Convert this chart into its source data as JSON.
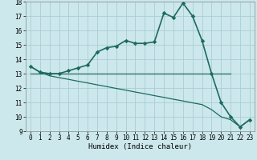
{
  "xlabel": "Humidex (Indice chaleur)",
  "x": [
    0,
    1,
    2,
    3,
    4,
    5,
    6,
    7,
    8,
    9,
    10,
    11,
    12,
    13,
    14,
    15,
    16,
    17,
    18,
    19,
    20,
    21,
    22,
    23
  ],
  "line1": [
    13.5,
    13.1,
    13.0,
    13.0,
    13.2,
    13.4,
    13.6,
    14.5,
    14.8,
    14.9,
    15.3,
    15.1,
    15.1,
    15.2,
    17.2,
    16.9,
    17.9,
    17.0,
    15.3,
    13.0,
    11.0,
    10.0,
    9.3,
    9.8
  ],
  "line2_x": [
    0,
    21
  ],
  "line2_y": [
    13.0,
    13.0
  ],
  "line3": [
    13.5,
    13.1,
    12.85,
    12.72,
    12.6,
    12.47,
    12.35,
    12.22,
    12.1,
    11.97,
    11.85,
    11.72,
    11.6,
    11.47,
    11.35,
    11.22,
    11.1,
    10.97,
    10.85,
    10.5,
    10.0,
    9.8,
    9.3,
    9.8
  ],
  "color": "#1d6b5e",
  "bg_color": "#cce8ec",
  "grid_color": "#aacdd4",
  "ylim": [
    9,
    18
  ],
  "xlim": [
    -0.5,
    23.5
  ],
  "yticks": [
    9,
    10,
    11,
    12,
    13,
    14,
    15,
    16,
    17,
    18
  ],
  "xticks": [
    0,
    1,
    2,
    3,
    4,
    5,
    6,
    7,
    8,
    9,
    10,
    11,
    12,
    13,
    14,
    15,
    16,
    17,
    18,
    19,
    20,
    21,
    22,
    23
  ],
  "tick_fontsize": 5.5,
  "xlabel_fontsize": 6.5,
  "linewidth1": 1.2,
  "linewidth2": 0.9,
  "linewidth3": 0.9,
  "markersize": 2.8
}
